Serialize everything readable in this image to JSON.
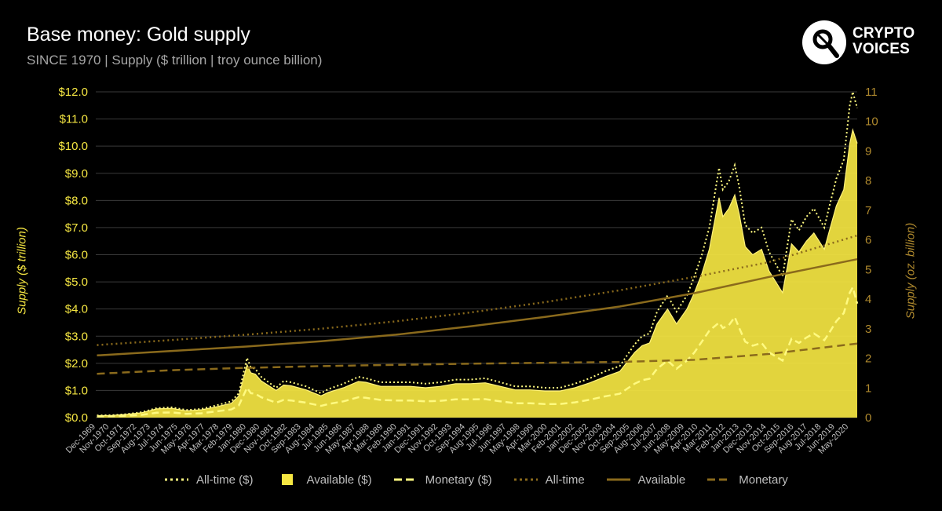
{
  "header": {
    "title": "Base money: Gold supply",
    "subtitle": "SINCE 1970 | Supply ($ trillion | troy ounce billion)"
  },
  "logo": {
    "line1": "CRYPTO",
    "line2": "VOICES",
    "icon": "microphone-icon"
  },
  "colors": {
    "background": "#000000",
    "grid": "#3a3a3a",
    "usd_fill": "#f5e642",
    "usd_line": "#fffa80",
    "oz_line": "#8a6a1c",
    "left_axis_text": "#f5e642",
    "right_axis_text": "#b08a2e",
    "x_tick_text": "#bfbfbf"
  },
  "chart_data": {
    "type": "area",
    "title": "Base money: Gold supply",
    "subtitle": "SINCE 1970 | Supply ($ trillion | troy ounce billion)",
    "ylabel_left": "Supply ($ trillion)",
    "ylabel_right": "Supply (oz. billion)",
    "ylim_left": [
      0,
      12
    ],
    "ylim_right": [
      0,
      11
    ],
    "left_ticks": [
      "$0.0",
      "$1.0",
      "$2.0",
      "$3.0",
      "$4.0",
      "$5.0",
      "$6.0",
      "$7.0",
      "$8.0",
      "$9.0",
      "$10.0",
      "$11.0",
      "$12.0"
    ],
    "right_ticks": [
      "0",
      "1",
      "2",
      "3",
      "4",
      "5",
      "6",
      "7",
      "8",
      "9",
      "10",
      "11"
    ],
    "x_range": [
      1969.92,
      2020.9
    ],
    "x_ticks": [
      "Dec-1969",
      "Nov-1970",
      "Oct-1971",
      "Sep-1972",
      "Aug-1973",
      "Jul-1974",
      "Jun-1975",
      "May-1976",
      "Apr-1977",
      "Mar-1978",
      "Feb-1979",
      "Jan-1980",
      "Dec-1980",
      "Nov-1981",
      "Oct-1982",
      "Sep-1983",
      "Aug-1984",
      "Jul-1985",
      "Jun-1986",
      "May-1987",
      "Apr-1988",
      "Mar-1989",
      "Feb-1990",
      "Jan-1991",
      "Dec-1991",
      "Nov-1992",
      "Oct-1993",
      "Sep-1994",
      "Aug-1995",
      "Jul-1996",
      "Jun-1997",
      "May-1998",
      "Apr-1999",
      "Mar-2000",
      "Feb-2001",
      "Jan-2002",
      "Dec-2002",
      "Nov-2003",
      "Oct-2004",
      "Sep-2005",
      "Aug-2006",
      "Jul-2007",
      "Jun-2008",
      "May-2009",
      "Apr-2010",
      "Mar-2011",
      "Feb-2012",
      "Jan-2013",
      "Dec-2013",
      "Nov-2014",
      "Oct-2015",
      "Sep-2016",
      "Aug-2017",
      "Jul-2018",
      "Jun-2019",
      "May-2020"
    ],
    "grid": true,
    "legend_position": "bottom",
    "series": [
      {
        "name": "All-time ($)",
        "axis": "left",
        "style": "dotted",
        "kind": "line",
        "x": [
          1970.0,
          1971.0,
          1972.0,
          1973.0,
          1974.0,
          1975.0,
          1976.0,
          1977.0,
          1978.0,
          1979.0,
          1979.5,
          1980.05,
          1980.3,
          1980.6,
          1981.0,
          1982.0,
          1982.5,
          1983.0,
          1984.0,
          1985.0,
          1985.5,
          1986.5,
          1987.5,
          1988.0,
          1989.0,
          1990.0,
          1991.0,
          1992.0,
          1993.0,
          1994.0,
          1995.0,
          1996.0,
          1997.0,
          1998.0,
          1999.0,
          2000.0,
          2001.0,
          2002.0,
          2003.0,
          2004.0,
          2005.0,
          2006.0,
          2006.5,
          2007.0,
          2007.5,
          2008.2,
          2008.8,
          2009.5,
          2010.0,
          2010.5,
          2011.0,
          2011.65,
          2011.9,
          2012.3,
          2012.7,
          2013.0,
          2013.4,
          2013.9,
          2014.5,
          2015.0,
          2015.9,
          2016.5,
          2017.0,
          2017.5,
          2018.0,
          2018.7,
          2019.0,
          2019.5,
          2020.0,
          2020.4,
          2020.6,
          2020.9
        ],
        "values": [
          0.08,
          0.09,
          0.13,
          0.2,
          0.35,
          0.38,
          0.28,
          0.32,
          0.45,
          0.6,
          0.9,
          2.2,
          1.85,
          1.8,
          1.5,
          1.1,
          1.35,
          1.3,
          1.15,
          0.9,
          1.05,
          1.25,
          1.5,
          1.45,
          1.3,
          1.3,
          1.3,
          1.25,
          1.3,
          1.4,
          1.4,
          1.45,
          1.3,
          1.15,
          1.15,
          1.1,
          1.1,
          1.25,
          1.45,
          1.7,
          1.9,
          2.7,
          3.0,
          3.1,
          3.9,
          4.5,
          3.9,
          4.5,
          5.2,
          6.0,
          7.0,
          9.2,
          8.4,
          8.7,
          9.3,
          8.5,
          7.1,
          6.8,
          7.0,
          6.1,
          5.2,
          7.3,
          6.9,
          7.4,
          7.7,
          7.0,
          7.7,
          8.8,
          9.5,
          11.5,
          12.0,
          11.4
        ]
      },
      {
        "name": "Available ($)",
        "axis": "left",
        "style": "fill",
        "kind": "area",
        "x": [
          1970.0,
          1971.0,
          1972.0,
          1973.0,
          1974.0,
          1975.0,
          1976.0,
          1977.0,
          1978.0,
          1979.0,
          1979.5,
          1980.05,
          1980.3,
          1980.6,
          1981.0,
          1982.0,
          1982.5,
          1983.0,
          1984.0,
          1985.0,
          1985.5,
          1986.5,
          1987.5,
          1988.0,
          1989.0,
          1990.0,
          1991.0,
          1992.0,
          1993.0,
          1994.0,
          1995.0,
          1996.0,
          1997.0,
          1998.0,
          1999.0,
          2000.0,
          2001.0,
          2002.0,
          2003.0,
          2004.0,
          2005.0,
          2006.0,
          2006.5,
          2007.0,
          2007.5,
          2008.2,
          2008.8,
          2009.5,
          2010.0,
          2010.5,
          2011.0,
          2011.65,
          2011.9,
          2012.3,
          2012.7,
          2013.0,
          2013.4,
          2013.9,
          2014.5,
          2015.0,
          2015.9,
          2016.5,
          2017.0,
          2017.5,
          2018.0,
          2018.7,
          2019.0,
          2019.5,
          2020.0,
          2020.4,
          2020.6,
          2020.9
        ],
        "values": [
          0.07,
          0.08,
          0.12,
          0.18,
          0.32,
          0.34,
          0.25,
          0.29,
          0.4,
          0.53,
          0.8,
          1.95,
          1.65,
          1.6,
          1.35,
          1.0,
          1.2,
          1.17,
          1.02,
          0.8,
          0.93,
          1.1,
          1.33,
          1.3,
          1.15,
          1.15,
          1.15,
          1.1,
          1.15,
          1.25,
          1.25,
          1.28,
          1.15,
          1.02,
          1.02,
          0.98,
          0.98,
          1.1,
          1.28,
          1.5,
          1.7,
          2.4,
          2.65,
          2.75,
          3.45,
          4.0,
          3.45,
          4.0,
          4.6,
          5.3,
          6.2,
          8.1,
          7.4,
          7.7,
          8.2,
          7.5,
          6.3,
          6.0,
          6.2,
          5.4,
          4.6,
          6.4,
          6.1,
          6.5,
          6.8,
          6.2,
          6.8,
          7.8,
          8.4,
          10.1,
          10.6,
          10.1
        ]
      },
      {
        "name": "Monetary ($)",
        "axis": "left",
        "style": "dashed",
        "kind": "line",
        "x": [
          1970.0,
          1971.0,
          1972.0,
          1973.0,
          1974.0,
          1975.0,
          1976.0,
          1977.0,
          1978.0,
          1979.0,
          1979.5,
          1980.05,
          1980.3,
          1980.6,
          1981.0,
          1982.0,
          1982.5,
          1983.0,
          1984.0,
          1985.0,
          1985.5,
          1986.5,
          1987.5,
          1988.0,
          1989.0,
          1990.0,
          1991.0,
          1992.0,
          1993.0,
          1994.0,
          1995.0,
          1996.0,
          1997.0,
          1998.0,
          1999.0,
          2000.0,
          2001.0,
          2002.0,
          2003.0,
          2004.0,
          2005.0,
          2006.0,
          2006.5,
          2007.0,
          2007.5,
          2008.2,
          2008.8,
          2009.5,
          2010.0,
          2010.5,
          2011.0,
          2011.65,
          2011.9,
          2012.3,
          2012.7,
          2013.0,
          2013.4,
          2013.9,
          2014.5,
          2015.0,
          2015.9,
          2016.5,
          2017.0,
          2017.5,
          2018.0,
          2018.7,
          2019.0,
          2019.5,
          2020.0,
          2020.4,
          2020.6,
          2020.9
        ],
        "values": [
          0.04,
          0.05,
          0.07,
          0.1,
          0.18,
          0.19,
          0.14,
          0.16,
          0.23,
          0.3,
          0.45,
          1.1,
          0.9,
          0.88,
          0.75,
          0.55,
          0.65,
          0.63,
          0.55,
          0.43,
          0.5,
          0.6,
          0.75,
          0.73,
          0.65,
          0.63,
          0.63,
          0.6,
          0.62,
          0.67,
          0.67,
          0.68,
          0.6,
          0.53,
          0.53,
          0.5,
          0.5,
          0.56,
          0.66,
          0.78,
          0.88,
          1.25,
          1.38,
          1.43,
          1.8,
          2.1,
          1.8,
          2.1,
          2.4,
          2.8,
          3.2,
          3.5,
          3.3,
          3.4,
          3.7,
          3.3,
          2.8,
          2.65,
          2.75,
          2.4,
          2.1,
          2.9,
          2.75,
          2.95,
          3.1,
          2.85,
          3.1,
          3.55,
          3.85,
          4.6,
          4.8,
          4.2
        ]
      },
      {
        "name": "All-time",
        "axis": "right",
        "style": "dotted",
        "kind": "line",
        "x": [
          1970,
          1975,
          1980,
          1985,
          1990,
          1995,
          2000,
          2005,
          2010,
          2015,
          2020.9
        ],
        "values": [
          2.45,
          2.62,
          2.8,
          3.0,
          3.25,
          3.55,
          3.9,
          4.3,
          4.75,
          5.25,
          6.15
        ]
      },
      {
        "name": "Available",
        "axis": "right",
        "style": "solid",
        "kind": "line",
        "x": [
          1970,
          1975,
          1980,
          1985,
          1990,
          1995,
          2000,
          2005,
          2010,
          2015,
          2020.9
        ],
        "values": [
          2.1,
          2.25,
          2.4,
          2.58,
          2.8,
          3.08,
          3.4,
          3.75,
          4.2,
          4.75,
          5.35
        ]
      },
      {
        "name": "Monetary",
        "axis": "right",
        "style": "dashed",
        "kind": "line",
        "x": [
          1970,
          1975,
          1980,
          1985,
          1990,
          1995,
          2000,
          2005,
          2010,
          2015,
          2020.9
        ],
        "values": [
          1.48,
          1.6,
          1.68,
          1.74,
          1.78,
          1.82,
          1.85,
          1.88,
          1.95,
          2.15,
          2.5
        ]
      }
    ]
  },
  "legend": [
    {
      "label": "All-time ($)",
      "kind": "dotted",
      "color": "#fffa80"
    },
    {
      "label": "Available ($)",
      "kind": "square",
      "color": "#f5e642"
    },
    {
      "label": "Monetary ($)",
      "kind": "dashed",
      "color": "#fffa80"
    },
    {
      "label": "All-time",
      "kind": "dotted",
      "color": "#8a6a1c"
    },
    {
      "label": "Available",
      "kind": "solid",
      "color": "#8a6a1c"
    },
    {
      "label": "Monetary",
      "kind": "dashed",
      "color": "#8a6a1c"
    }
  ]
}
